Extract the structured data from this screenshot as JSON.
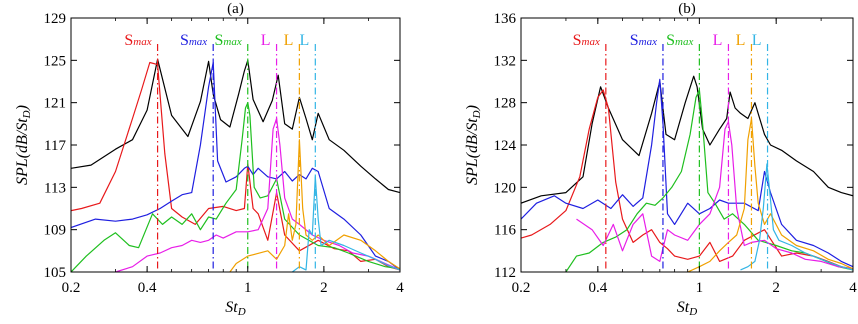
{
  "chart_data": [
    {
      "type": "line",
      "title": "(a)",
      "xlabel": "St_D",
      "ylabel": "SPL(dB/St_D)",
      "xscale": "log",
      "xlim": [
        0.2,
        4
      ],
      "ylim": [
        105,
        129
      ],
      "xticks": [
        0.2,
        0.4,
        1,
        2,
        4
      ],
      "xtick_labels": [
        "0.2",
        "0.4",
        "1",
        "2",
        "4"
      ],
      "yticks": [
        105,
        109,
        113,
        117,
        121,
        125,
        129
      ],
      "ytick_labels": [
        "105",
        "109",
        "113",
        "117",
        "121",
        "125",
        "129"
      ],
      "grid": false,
      "markers": [
        {
          "label": "S",
          "sub": "max",
          "x": 0.44,
          "color": "#e8191b"
        },
        {
          "label": "S",
          "sub": "max",
          "x": 0.73,
          "color": "#1f1fe0"
        },
        {
          "label": "S",
          "sub": "max",
          "x": 1.0,
          "color": "#1fbf1f"
        },
        {
          "label": "L",
          "sub": "",
          "x": 1.3,
          "color": "#e81ee8"
        },
        {
          "label": "L",
          "sub": "",
          "x": 1.6,
          "color": "#f0a000"
        },
        {
          "label": "L",
          "sub": "",
          "x": 1.85,
          "color": "#33b5e5"
        }
      ],
      "series": [
        {
          "color": "#000000",
          "x": [
            0.2,
            0.24,
            0.3,
            0.35,
            0.4,
            0.44,
            0.5,
            0.58,
            0.65,
            0.7,
            0.73,
            0.78,
            0.85,
            0.92,
            0.97,
            1.0,
            1.05,
            1.15,
            1.25,
            1.32,
            1.4,
            1.5,
            1.6,
            1.7,
            1.8,
            1.9,
            2.1,
            2.4,
            2.8,
            3.2,
            3.6,
            4.0
          ],
          "y": [
            114.8,
            115.1,
            116.6,
            117.5,
            120.3,
            125.1,
            119.8,
            117.8,
            121.1,
            124.9,
            121.8,
            119.4,
            118.7,
            121.8,
            124.0,
            125.0,
            121.3,
            119.2,
            121.2,
            123.6,
            119.0,
            118.5,
            121.5,
            119.5,
            117.5,
            120.0,
            117.5,
            116.5,
            115.0,
            113.8,
            112.8,
            112.5
          ]
        },
        {
          "color": "#e8191b",
          "x": [
            0.2,
            0.22,
            0.26,
            0.3,
            0.35,
            0.38,
            0.41,
            0.44,
            0.47,
            0.5,
            0.55,
            0.62,
            0.7,
            0.8,
            0.9,
            0.97,
            1.0,
            1.05,
            1.1,
            1.2,
            1.3,
            1.4,
            1.6,
            1.9,
            2.2,
            2.5,
            2.8,
            3.2,
            3.6,
            4.0
          ],
          "y": [
            110.8,
            111.0,
            111.5,
            114.5,
            119.5,
            122.2,
            124.8,
            124.6,
            116.2,
            111.0,
            110.2,
            109.5,
            111.0,
            111.2,
            110.8,
            111.0,
            115.2,
            111.0,
            110.5,
            108.0,
            112.5,
            108.5,
            107.0,
            108.0,
            107.2,
            107.0,
            106.0,
            106.2,
            105.5,
            105.2
          ]
        },
        {
          "color": "#1f1fe0",
          "x": [
            0.2,
            0.25,
            0.3,
            0.35,
            0.4,
            0.45,
            0.5,
            0.55,
            0.6,
            0.65,
            0.7,
            0.73,
            0.76,
            0.82,
            0.9,
            0.97,
            1.0,
            1.05,
            1.1,
            1.2,
            1.3,
            1.4,
            1.5,
            1.6,
            1.7,
            1.8,
            1.9,
            2.1,
            2.4,
            2.8,
            3.2,
            3.6,
            4.0
          ],
          "y": [
            109.2,
            110.0,
            109.8,
            110.0,
            110.4,
            111.0,
            111.7,
            112.3,
            112.5,
            117.0,
            122.5,
            124.8,
            115.5,
            113.5,
            114.0,
            114.8,
            115.0,
            114.2,
            114.8,
            114.0,
            113.8,
            114.5,
            113.6,
            114.2,
            113.8,
            114.8,
            114.5,
            111.0,
            110.0,
            108.5,
            106.5,
            106.0,
            105.2
          ]
        },
        {
          "color": "#1fbf1f",
          "x": [
            0.2,
            0.23,
            0.27,
            0.3,
            0.34,
            0.37,
            0.42,
            0.46,
            0.5,
            0.55,
            0.6,
            0.65,
            0.7,
            0.75,
            0.82,
            0.9,
            0.95,
            0.98,
            1.0,
            1.02,
            1.06,
            1.12,
            1.2,
            1.3,
            1.4,
            1.6,
            1.9,
            2.2,
            2.5,
            3.0,
            3.5,
            4.0
          ],
          "y": [
            105.0,
            106.5,
            108.0,
            108.7,
            107.5,
            107.3,
            110.5,
            109.5,
            110.2,
            109.5,
            110.5,
            109.0,
            110.2,
            110.0,
            111.5,
            112.8,
            117.5,
            120.5,
            121.0,
            119.8,
            113.0,
            112.0,
            112.2,
            113.8,
            110.0,
            108.5,
            107.5,
            107.3,
            106.8,
            106.0,
            105.5,
            105.3
          ]
        },
        {
          "color": "#e81ee8",
          "x": [
            0.3,
            0.35,
            0.4,
            0.45,
            0.5,
            0.55,
            0.6,
            0.65,
            0.7,
            0.75,
            0.8,
            0.9,
            1.0,
            1.1,
            1.2,
            1.26,
            1.3,
            1.34,
            1.4,
            1.5,
            1.6,
            1.8,
            2.0,
            2.3,
            2.6,
            3.0,
            3.5,
            4.0
          ],
          "y": [
            105.0,
            105.5,
            106.5,
            106.8,
            107.3,
            107.5,
            108.0,
            107.8,
            108.0,
            108.5,
            108.2,
            108.8,
            108.8,
            109.0,
            111.0,
            118.5,
            119.5,
            117.0,
            112.0,
            110.0,
            109.5,
            108.5,
            108.0,
            107.5,
            106.8,
            106.5,
            105.8,
            105.2
          ]
        },
        {
          "color": "#f0a000",
          "x": [
            0.85,
            0.9,
            1.0,
            1.2,
            1.3,
            1.4,
            1.45,
            1.5,
            1.55,
            1.6,
            1.65,
            1.7,
            1.8,
            1.9,
            2.1,
            2.4,
            2.8,
            3.2,
            3.6,
            4.0
          ],
          "y": [
            105.0,
            105.8,
            106.5,
            107.0,
            106.2,
            107.5,
            110.5,
            108.0,
            109.5,
            117.5,
            111.0,
            108.5,
            108.0,
            108.5,
            107.5,
            108.5,
            108.0,
            107.0,
            106.0,
            105.3
          ]
        },
        {
          "color": "#33b5e5",
          "x": [
            1.5,
            1.6,
            1.7,
            1.75,
            1.8,
            1.85,
            1.9,
            1.95,
            2.1,
            2.4,
            2.8,
            3.2,
            3.6,
            4.0
          ],
          "y": [
            105.0,
            105.5,
            105.2,
            109.0,
            108.5,
            114.0,
            110.0,
            107.5,
            108.0,
            107.5,
            106.8,
            106.2,
            105.6,
            105.2
          ]
        }
      ]
    },
    {
      "type": "line",
      "title": "(b)",
      "xlabel": "St_D",
      "ylabel": "SPL(dB/St_D)",
      "xscale": "log",
      "xlim": [
        0.2,
        4
      ],
      "ylim": [
        112,
        136
      ],
      "xticks": [
        0.2,
        0.4,
        1,
        2,
        4
      ],
      "xtick_labels": [
        "0.2",
        "0.4",
        "1",
        "2",
        "4"
      ],
      "yticks": [
        112,
        116,
        120,
        124,
        128,
        132,
        136
      ],
      "ytick_labels": [
        "112",
        "116",
        "120",
        "124",
        "128",
        "132",
        "136"
      ],
      "grid": false,
      "markers": [
        {
          "label": "S",
          "sub": "max",
          "x": 0.43,
          "color": "#e8191b"
        },
        {
          "label": "S",
          "sub": "max",
          "x": 0.72,
          "color": "#1f1fe0"
        },
        {
          "label": "S",
          "sub": "max",
          "x": 1.0,
          "color": "#1fbf1f"
        },
        {
          "label": "L",
          "sub": "",
          "x": 1.3,
          "color": "#e81ee8"
        },
        {
          "label": "L",
          "sub": "",
          "x": 1.6,
          "color": "#f0a000"
        },
        {
          "label": "L",
          "sub": "",
          "x": 1.85,
          "color": "#33b5e5"
        }
      ],
      "series": [
        {
          "color": "#000000",
          "x": [
            0.2,
            0.24,
            0.3,
            0.35,
            0.38,
            0.41,
            0.44,
            0.5,
            0.58,
            0.65,
            0.7,
            0.74,
            0.8,
            0.88,
            0.95,
            0.98,
            1.03,
            1.1,
            1.2,
            1.28,
            1.32,
            1.38,
            1.45,
            1.55,
            1.65,
            1.8,
            1.9,
            2.1,
            2.4,
            2.8,
            3.2,
            3.6,
            4.0
          ],
          "y": [
            118.5,
            119.2,
            119.5,
            121.0,
            126.0,
            129.5,
            127.5,
            124.5,
            123.0,
            127.0,
            130.0,
            125.0,
            124.5,
            128.0,
            130.5,
            129.5,
            125.5,
            124.0,
            125.5,
            126.5,
            129.0,
            127.5,
            127.0,
            126.5,
            128.0,
            125.0,
            124.0,
            123.5,
            122.5,
            121.5,
            120.0,
            119.5,
            119.2
          ]
        },
        {
          "color": "#e8191b",
          "x": [
            0.2,
            0.22,
            0.26,
            0.3,
            0.34,
            0.37,
            0.4,
            0.42,
            0.44,
            0.47,
            0.5,
            0.55,
            0.6,
            0.65,
            0.7,
            0.75,
            0.8,
            0.9,
            1.0,
            1.1,
            1.2,
            1.35,
            1.5,
            1.8,
            2.1,
            2.4,
            2.8,
            3.2,
            3.6,
            4.0
          ],
          "y": [
            115.2,
            115.5,
            116.5,
            117.8,
            121.0,
            125.5,
            128.5,
            129.2,
            127.5,
            120.5,
            117.0,
            114.8,
            115.5,
            116.0,
            114.8,
            114.2,
            113.5,
            113.2,
            113.5,
            114.8,
            113.0,
            113.5,
            115.0,
            116.0,
            113.5,
            113.8,
            113.5,
            113.0,
            112.5,
            112.3
          ]
        },
        {
          "color": "#1f1fe0",
          "x": [
            0.2,
            0.23,
            0.27,
            0.3,
            0.35,
            0.4,
            0.45,
            0.5,
            0.55,
            0.6,
            0.65,
            0.68,
            0.7,
            0.72,
            0.75,
            0.8,
            0.9,
            1.0,
            1.1,
            1.2,
            1.3,
            1.5,
            1.7,
            1.8,
            1.9,
            2.1,
            2.4,
            2.8,
            3.2,
            3.6,
            4.0
          ],
          "y": [
            117.0,
            118.5,
            119.2,
            118.5,
            118.0,
            118.8,
            118.0,
            119.3,
            118.2,
            119.0,
            124.0,
            128.0,
            130.2,
            126.0,
            117.5,
            116.5,
            118.5,
            117.5,
            118.0,
            118.8,
            118.5,
            118.5,
            117.8,
            121.5,
            119.5,
            116.5,
            115.0,
            114.5,
            113.8,
            113.0,
            112.5
          ]
        },
        {
          "color": "#1fbf1f",
          "x": [
            0.3,
            0.33,
            0.37,
            0.42,
            0.47,
            0.52,
            0.57,
            0.62,
            0.67,
            0.72,
            0.78,
            0.85,
            0.92,
            0.97,
            1.0,
            1.03,
            1.08,
            1.15,
            1.25,
            1.35,
            1.5,
            1.7,
            2.0,
            2.3,
            2.6,
            3.0,
            3.5,
            4.0
          ],
          "y": [
            112.0,
            113.5,
            113.8,
            114.8,
            115.3,
            116.0,
            117.5,
            118.5,
            118.3,
            119.0,
            120.0,
            121.5,
            125.0,
            128.5,
            129.2,
            126.0,
            119.5,
            118.5,
            117.0,
            117.5,
            116.5,
            115.0,
            114.5,
            114.0,
            113.8,
            113.2,
            112.5,
            112.2
          ]
        },
        {
          "color": "#e81ee8",
          "x": [
            0.33,
            0.38,
            0.42,
            0.46,
            0.5,
            0.55,
            0.6,
            0.65,
            0.7,
            0.75,
            0.8,
            0.9,
            1.0,
            1.1,
            1.2,
            1.26,
            1.3,
            1.34,
            1.4,
            1.5,
            1.6,
            1.8,
            2.0,
            2.3,
            2.6,
            3.0,
            3.5,
            4.0
          ],
          "y": [
            117.0,
            116.0,
            114.5,
            116.5,
            114.0,
            116.5,
            117.5,
            113.5,
            113.0,
            116.0,
            115.5,
            115.0,
            116.5,
            117.5,
            120.0,
            125.5,
            126.2,
            124.0,
            118.0,
            114.5,
            114.8,
            115.0,
            114.2,
            113.8,
            113.2,
            113.0,
            112.5,
            112.3
          ]
        },
        {
          "color": "#f0a000",
          "x": [
            0.9,
            1.0,
            1.1,
            1.2,
            1.3,
            1.4,
            1.5,
            1.55,
            1.6,
            1.65,
            1.7,
            1.8,
            1.9,
            2.1,
            2.4,
            2.8,
            3.2,
            3.6,
            4.0
          ],
          "y": [
            112.0,
            112.5,
            113.0,
            114.0,
            114.8,
            115.5,
            118.0,
            124.5,
            126.5,
            122.0,
            118.5,
            116.5,
            117.5,
            115.5,
            114.5,
            114.0,
            113.2,
            112.8,
            112.3
          ]
        },
        {
          "color": "#33b5e5",
          "x": [
            1.45,
            1.55,
            1.65,
            1.72,
            1.78,
            1.84,
            1.88,
            1.95,
            2.05,
            2.3,
            2.6,
            3.0,
            3.5,
            4.0
          ],
          "y": [
            112.2,
            112.5,
            113.0,
            115.0,
            118.0,
            122.2,
            120.0,
            116.0,
            115.0,
            114.5,
            113.8,
            113.2,
            112.6,
            112.2
          ]
        }
      ]
    }
  ]
}
